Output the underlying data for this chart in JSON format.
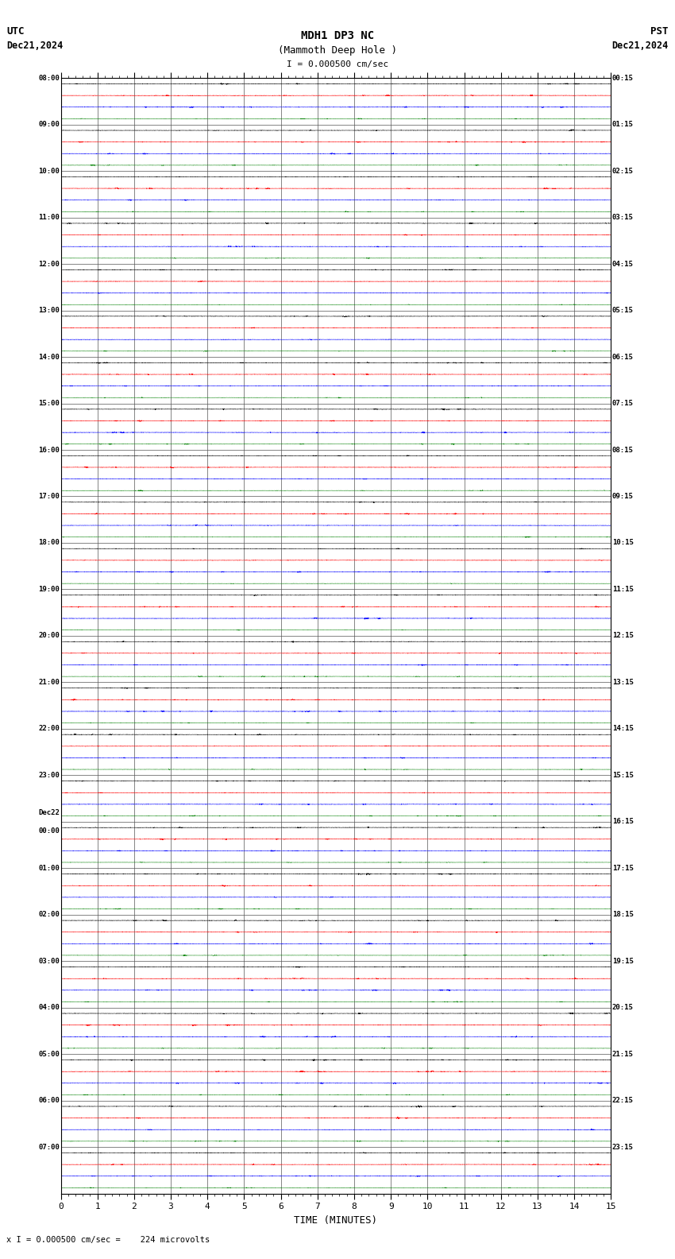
{
  "title_line1": "MDH1 DP3 NC",
  "title_line2": "(Mammoth Deep Hole )",
  "title_scale": "I = 0.000500 cm/sec",
  "utc_label": "UTC",
  "utc_date": "Dec21,2024",
  "pst_label": "PST",
  "pst_date": "Dec21,2024",
  "bottom_label": "TIME (MINUTES)",
  "bottom_note": "x I = 0.000500 cm/sec =    224 microvolts",
  "xlabel_ticks": [
    0,
    1,
    2,
    3,
    4,
    5,
    6,
    7,
    8,
    9,
    10,
    11,
    12,
    13,
    14,
    15
  ],
  "left_times_utc": [
    "08:00",
    "09:00",
    "10:00",
    "11:00",
    "12:00",
    "13:00",
    "14:00",
    "15:00",
    "16:00",
    "17:00",
    "18:00",
    "19:00",
    "20:00",
    "21:00",
    "22:00",
    "23:00",
    "Dec22\n00:00",
    "01:00",
    "02:00",
    "03:00",
    "04:00",
    "05:00",
    "06:00",
    "07:00"
  ],
  "right_times_pst": [
    "00:15",
    "01:15",
    "02:15",
    "03:15",
    "04:15",
    "05:15",
    "06:15",
    "07:15",
    "08:15",
    "09:15",
    "10:15",
    "11:15",
    "12:15",
    "13:15",
    "14:15",
    "15:15",
    "16:15",
    "17:15",
    "18:15",
    "19:15",
    "20:15",
    "21:15",
    "22:15",
    "23:15"
  ],
  "n_rows": 24,
  "n_traces_per_row": 4,
  "trace_colors": [
    "black",
    "red",
    "blue",
    "green"
  ],
  "bg_color": "white",
  "grid_color": "#888888",
  "fig_width": 8.5,
  "fig_height": 15.84,
  "dpi": 100,
  "noise_amp_black": 0.006,
  "noise_amp_red": 0.006,
  "noise_amp_blue": 0.006,
  "noise_amp_green": 0.004
}
